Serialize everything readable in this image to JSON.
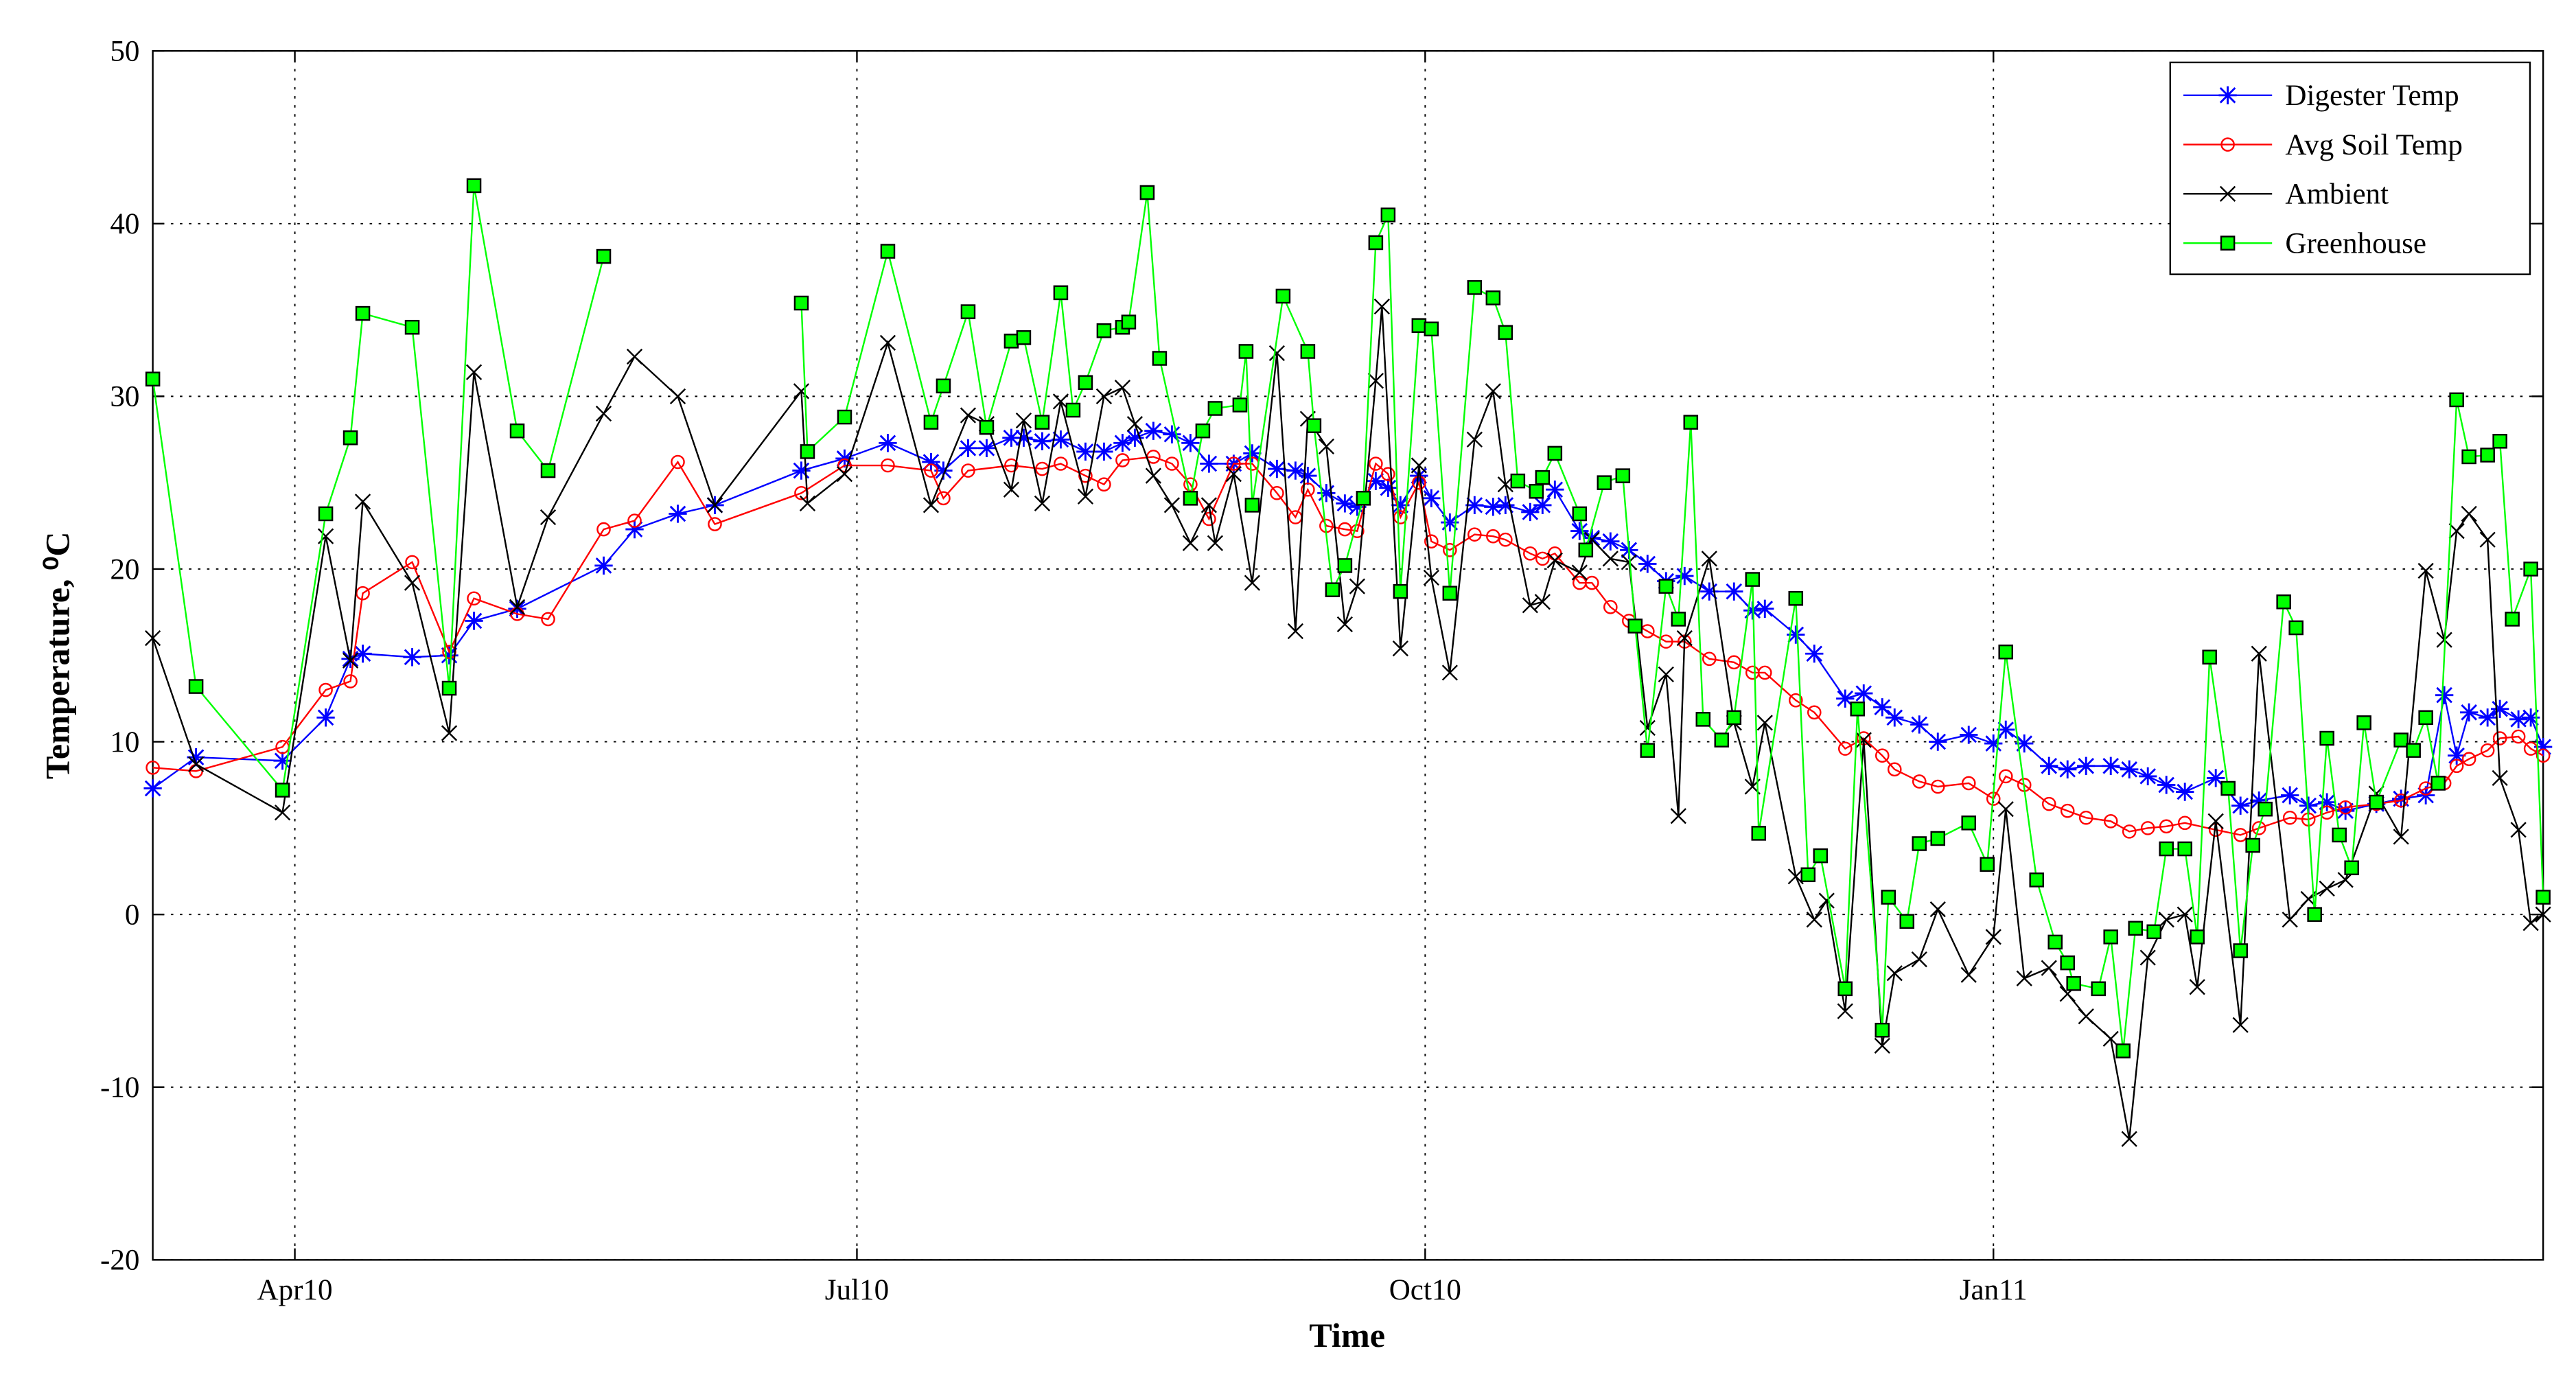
{
  "chart_data": {
    "type": "line",
    "x_label": "Time",
    "y_label": "Temperature, ⁰C",
    "xlim": [
      734206,
      734593
    ],
    "ylim": [
      -20,
      50
    ],
    "xticks": [
      {
        "value": 734229,
        "label": "Apr10"
      },
      {
        "value": 734320,
        "label": "Jul10"
      },
      {
        "value": 734412,
        "label": "Oct10"
      },
      {
        "value": 734504,
        "label": "Jan11"
      }
    ],
    "yticks": [
      -20,
      -10,
      0,
      10,
      20,
      30,
      40,
      50
    ],
    "grid": true,
    "legend": "northeast",
    "series": [
      {
        "name": "Digester Temp",
        "color": "#0000ff",
        "marker": "asterisk",
        "x": [
          734206,
          734213,
          734227,
          734234,
          734238,
          734240,
          734248,
          734254,
          734258,
          734265,
          734279,
          734284,
          734291,
          734297,
          734311,
          734318,
          734325,
          734332,
          734334,
          734338,
          734341,
          734345,
          734347,
          734350,
          734353,
          734357,
          734360,
          734363,
          734365,
          734368,
          734371,
          734374,
          734377,
          734381,
          734384,
          734388,
          734391,
          734393,
          734396,
          734399,
          734401,
          734404,
          734406,
          734408,
          734411,
          734413,
          734416,
          734420,
          734423,
          734425,
          734429,
          734431,
          734433,
          734437,
          734439,
          734442,
          734445,
          734448,
          734451,
          734454,
          734458,
          734462,
          734465,
          734467,
          734472,
          734475,
          734480,
          734483,
          734486,
          734488,
          734492,
          734495,
          734500,
          734504,
          734506,
          734509,
          734513,
          734516,
          734519,
          734523,
          734526,
          734529,
          734532,
          734535,
          734540,
          734544,
          734547,
          734552,
          734555,
          734558,
          734561,
          734566,
          734570,
          734574,
          734577,
          734579,
          734581,
          734584,
          734586,
          734589,
          734591,
          734593
        ],
        "values": [
          7.3,
          9.1,
          8.9,
          11.4,
          14.8,
          15.1,
          14.9,
          15.0,
          17.0,
          17.7,
          20.2,
          22.3,
          23.2,
          23.7,
          25.7,
          26.4,
          27.3,
          26.2,
          25.7,
          27.0,
          27.0,
          27.6,
          27.6,
          27.4,
          27.5,
          26.8,
          26.8,
          27.3,
          27.6,
          28.0,
          27.8,
          27.3,
          26.1,
          26.1,
          26.7,
          25.8,
          25.7,
          25.4,
          24.4,
          23.8,
          23.6,
          25.1,
          24.7,
          23.7,
          25.4,
          24.1,
          22.7,
          23.7,
          23.6,
          23.7,
          23.3,
          23.7,
          24.6,
          22.2,
          21.8,
          21.6,
          21.1,
          20.3,
          19.3,
          19.6,
          18.7,
          18.7,
          17.6,
          17.7,
          16.2,
          15.1,
          12.5,
          12.8,
          12.0,
          11.4,
          11.0,
          10.0,
          10.4,
          9.9,
          10.7,
          9.9,
          8.6,
          8.4,
          8.6,
          8.6,
          8.4,
          8.0,
          7.5,
          7.1,
          7.9,
          6.3,
          6.6,
          6.9,
          6.3,
          6.5,
          6.0,
          6.4,
          6.7,
          6.9,
          12.7,
          9.2,
          11.7,
          11.4,
          11.9,
          11.3,
          11.4,
          9.7
        ]
      },
      {
        "name": "Avg Soil Temp",
        "color": "#ff0000",
        "marker": "circle",
        "x": [
          734206,
          734213,
          734227,
          734234,
          734238,
          734240,
          734248,
          734254,
          734258,
          734265,
          734270,
          734279,
          734284,
          734291,
          734297,
          734311,
          734318,
          734325,
          734332,
          734334,
          734338,
          734345,
          734350,
          734353,
          734357,
          734360,
          734363,
          734368,
          734371,
          734374,
          734377,
          734381,
          734384,
          734388,
          734391,
          734393,
          734396,
          734399,
          734401,
          734404,
          734406,
          734408,
          734411,
          734413,
          734416,
          734420,
          734423,
          734425,
          734429,
          734431,
          734433,
          734437,
          734439,
          734442,
          734445,
          734448,
          734451,
          734454,
          734458,
          734462,
          734465,
          734467,
          734472,
          734475,
          734480,
          734483,
          734486,
          734488,
          734492,
          734495,
          734500,
          734504,
          734506,
          734509,
          734513,
          734516,
          734519,
          734523,
          734526,
          734529,
          734532,
          734535,
          734540,
          734544,
          734547,
          734552,
          734555,
          734558,
          734561,
          734566,
          734570,
          734574,
          734577,
          734579,
          734581,
          734584,
          734586,
          734589,
          734591,
          734593
        ],
        "values": [
          8.5,
          8.3,
          9.7,
          13.0,
          13.5,
          18.6,
          20.4,
          15.2,
          18.3,
          17.4,
          17.1,
          22.3,
          22.8,
          26.2,
          22.6,
          24.4,
          26.0,
          26.0,
          25.7,
          24.1,
          25.7,
          26.0,
          25.8,
          26.1,
          25.4,
          24.9,
          26.3,
          26.5,
          26.1,
          24.9,
          22.9,
          26.1,
          26.1,
          24.4,
          23.0,
          24.6,
          22.5,
          22.3,
          22.2,
          26.1,
          25.5,
          23.0,
          25.0,
          21.6,
          21.1,
          22.0,
          21.9,
          21.7,
          20.9,
          20.6,
          20.9,
          19.2,
          19.2,
          17.8,
          17.0,
          16.4,
          15.8,
          15.8,
          14.8,
          14.6,
          14.0,
          14.0,
          12.4,
          11.7,
          9.6,
          10.2,
          9.2,
          8.4,
          7.7,
          7.4,
          7.6,
          6.7,
          8.0,
          7.5,
          6.4,
          6.0,
          5.6,
          5.4,
          4.8,
          5.0,
          5.1,
          5.3,
          4.9,
          4.6,
          5.0,
          5.6,
          5.5,
          5.9,
          6.2,
          6.4,
          6.6,
          7.3,
          7.6,
          8.6,
          9.0,
          9.5,
          10.2,
          10.3,
          9.6,
          9.2
        ]
      },
      {
        "name": "Ambient",
        "color": "#000000",
        "marker": "x",
        "x": [
          734206,
          734213,
          734227,
          734234,
          734238,
          734240,
          734248,
          734254,
          734258,
          734265,
          734270,
          734279,
          734284,
          734291,
          734297,
          734311,
          734312,
          734318,
          734325,
          734332,
          734338,
          734341,
          734345,
          734347,
          734350,
          734353,
          734357,
          734360,
          734363,
          734365,
          734368,
          734371,
          734374,
          734377,
          734378,
          734381,
          734384,
          734388,
          734391,
          734393,
          734396,
          734399,
          734401,
          734404,
          734405,
          734408,
          734411,
          734413,
          734416,
          734420,
          734423,
          734425,
          734429,
          734431,
          734433,
          734437,
          734439,
          734442,
          734445,
          734448,
          734451,
          734453,
          734454,
          734458,
          734462,
          734465,
          734467,
          734472,
          734475,
          734477,
          734480,
          734483,
          734486,
          734488,
          734492,
          734495,
          734500,
          734504,
          734506,
          734509,
          734513,
          734516,
          734519,
          734523,
          734526,
          734529,
          734532,
          734535,
          734537,
          734540,
          734544,
          734547,
          734552,
          734555,
          734558,
          734561,
          734566,
          734570,
          734574,
          734577,
          734579,
          734581,
          734584,
          734586,
          734589,
          734591,
          734593
        ],
        "values": [
          16.0,
          8.7,
          5.9,
          21.9,
          14.7,
          23.9,
          19.2,
          10.5,
          31.4,
          17.8,
          23.0,
          29.0,
          32.3,
          30.0,
          23.7,
          30.3,
          23.8,
          25.5,
          33.1,
          23.7,
          28.9,
          28.4,
          24.6,
          28.6,
          23.8,
          29.7,
          24.2,
          30.0,
          30.5,
          28.4,
          25.4,
          23.7,
          21.5,
          23.7,
          21.5,
          25.5,
          19.2,
          32.5,
          16.4,
          28.7,
          27.1,
          16.8,
          19.0,
          30.9,
          35.2,
          15.4,
          26.0,
          19.5,
          14.0,
          27.5,
          30.3,
          24.9,
          17.9,
          18.1,
          20.5,
          19.8,
          21.7,
          20.6,
          20.4,
          10.8,
          13.9,
          5.7,
          16.0,
          20.6,
          11.1,
          7.4,
          11.1,
          2.2,
          -0.3,
          0.8,
          -5.6,
          10.1,
          -7.6,
          -3.4,
          -2.6,
          0.3,
          -3.5,
          -1.3,
          6.1,
          -3.7,
          -3.1,
          -4.6,
          -5.9,
          -7.2,
          -13.0,
          -2.5,
          -0.3,
          0.0,
          -4.2,
          5.4,
          -6.4,
          15.1,
          -0.3,
          0.9,
          1.5,
          2.0,
          7.0,
          4.5,
          19.9,
          15.9,
          22.2,
          23.2,
          21.7,
          7.9,
          4.9,
          -0.5,
          0.0
        ]
      },
      {
        "name": "Greenhouse",
        "color": "#00ff00",
        "marker": "square",
        "x": [
          734206,
          734213,
          734227,
          734234,
          734238,
          734240,
          734248,
          734254,
          734258,
          734265,
          734270,
          734279,
          734295,
          734311,
          734312,
          734318,
          734325,
          734332,
          734334,
          734338,
          734341,
          734345,
          734347,
          734350,
          734353,
          734355,
          734357,
          734360,
          734363,
          734364,
          734367,
          734369,
          734374,
          734376,
          734378,
          734382,
          734383,
          734384,
          734389,
          734393,
          734394,
          734397,
          734399,
          734402,
          734404,
          734406,
          734408,
          734411,
          734413,
          734416,
          734420,
          734423,
          734425,
          734427,
          734430,
          734431,
          734433,
          734437,
          734438,
          734441,
          734444,
          734446,
          734448,
          734451,
          734453,
          734455,
          734457,
          734460,
          734462,
          734465,
          734466,
          734472,
          734474,
          734476,
          734480,
          734482,
          734486,
          734487,
          734490,
          734492,
          734495,
          734500,
          734503,
          734506,
          734511,
          734514,
          734516,
          734517,
          734521,
          734523,
          734525,
          734527,
          734530,
          734532,
          734535,
          734537,
          734539,
          734542,
          734544,
          734546,
          734548,
          734551,
          734553,
          734556,
          734558,
          734560,
          734562,
          734564,
          734566,
          734570,
          734572,
          734574,
          734576,
          734579,
          734581,
          734584,
          734586,
          734588,
          734591,
          734593
        ],
        "values": [
          31.0,
          13.2,
          7.2,
          23.2,
          27.6,
          34.8,
          34.0,
          13.1,
          42.2,
          28.0,
          25.7,
          38.1,
          null,
          35.4,
          26.8,
          28.8,
          38.4,
          28.5,
          30.6,
          34.9,
          28.2,
          33.2,
          33.4,
          28.5,
          36.0,
          29.2,
          30.8,
          33.8,
          34.0,
          34.3,
          41.8,
          32.2,
          24.1,
          28.0,
          29.3,
          29.5,
          32.6,
          23.7,
          35.8,
          32.6,
          28.3,
          18.8,
          20.2,
          24.1,
          38.9,
          40.5,
          18.7,
          34.1,
          33.9,
          18.6,
          36.3,
          35.7,
          33.7,
          25.1,
          24.5,
          25.3,
          26.7,
          23.2,
          21.1,
          25.0,
          25.4,
          16.7,
          9.5,
          19.0,
          17.1,
          28.5,
          11.3,
          10.1,
          11.4,
          19.4,
          4.7,
          18.3,
          2.3,
          3.4,
          -4.3,
          11.9,
          -6.7,
          1.0,
          -0.4,
          4.1,
          4.4,
          5.3,
          2.9,
          15.2,
          2.0,
          -1.6,
          -2.8,
          -4.0,
          -4.3,
          -1.3,
          -7.9,
          -0.8,
          -1.0,
          3.8,
          3.8,
          -1.3,
          14.9,
          7.3,
          -2.1,
          4.0,
          6.1,
          18.1,
          16.6,
          0.0,
          10.2,
          4.6,
          2.7,
          11.1,
          6.5,
          10.1,
          9.5,
          11.4,
          7.6,
          29.8,
          26.5,
          26.6,
          27.4,
          17.1,
          20.0,
          1.0
        ]
      }
    ]
  }
}
